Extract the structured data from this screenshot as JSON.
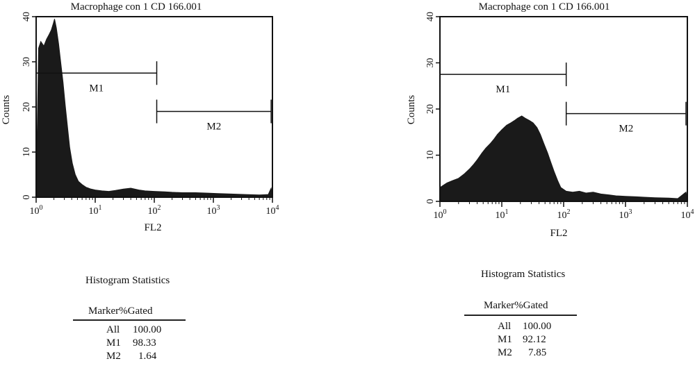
{
  "chart_data": [
    {
      "type": "histogram",
      "title": "Macrophage con 1 CD 166.001",
      "xlabel": "FL2",
      "ylabel": "Counts",
      "xscale": "log",
      "xlim": [
        1,
        10000
      ],
      "ylim": [
        0,
        40
      ],
      "x_ticks": [
        "10^0",
        "10^1",
        "10^2",
        "10^3",
        "10^4"
      ],
      "y_ticks": [
        0,
        10,
        20,
        30,
        40
      ],
      "fill_color": "#1a1a1a",
      "markers": [
        {
          "name": "M1",
          "from": 1,
          "to": 110,
          "level": 27.5
        },
        {
          "name": "M2",
          "from": 110,
          "to": 9500,
          "level": 19
        }
      ],
      "series": [
        {
          "values": [
            [
              1.0,
              0.5
            ],
            [
              1.1,
              33
            ],
            [
              1.2,
              34.5
            ],
            [
              1.35,
              33.5
            ],
            [
              1.5,
              35
            ],
            [
              1.65,
              36
            ],
            [
              1.8,
              37
            ],
            [
              1.95,
              38.5
            ],
            [
              2.05,
              39.5
            ],
            [
              2.2,
              37.5
            ],
            [
              2.4,
              34
            ],
            [
              2.6,
              30
            ],
            [
              2.85,
              25.5
            ],
            [
              3.1,
              20.5
            ],
            [
              3.4,
              15.5
            ],
            [
              3.7,
              11
            ],
            [
              4.1,
              7.5
            ],
            [
              4.6,
              5
            ],
            [
              5.2,
              3.5
            ],
            [
              6,
              2.8
            ],
            [
              7,
              2.2
            ],
            [
              8.5,
              1.8
            ],
            [
              10,
              1.6
            ],
            [
              13,
              1.4
            ],
            [
              17,
              1.3
            ],
            [
              22,
              1.5
            ],
            [
              30,
              1.8
            ],
            [
              40,
              2
            ],
            [
              55,
              1.6
            ],
            [
              70,
              1.4
            ],
            [
              100,
              1.3
            ],
            [
              150,
              1.2
            ],
            [
              200,
              1.1
            ],
            [
              300,
              1
            ],
            [
              500,
              1
            ],
            [
              800,
              0.9
            ],
            [
              1200,
              0.8
            ],
            [
              2000,
              0.7
            ],
            [
              3500,
              0.6
            ],
            [
              6000,
              0.5
            ],
            [
              8500,
              0.6
            ],
            [
              9500,
              2
            ],
            [
              10000,
              0.5
            ]
          ]
        }
      ],
      "stats": {
        "title": "Histogram Statistics",
        "headers": [
          "Marker",
          "%Gated"
        ],
        "rows": [
          {
            "marker": "All",
            "gated": "100.00"
          },
          {
            "marker": "M1",
            "gated": "98.33"
          },
          {
            "marker": "M2",
            "gated": "1.64"
          }
        ]
      }
    },
    {
      "type": "histogram",
      "title": "Macrophage con 1 CD 166.001",
      "xlabel": "FL2",
      "ylabel": "Counts",
      "xscale": "log",
      "xlim": [
        1,
        10000
      ],
      "ylim": [
        0,
        40
      ],
      "x_ticks": [
        "10^0",
        "10^1",
        "10^2",
        "10^3",
        "10^4"
      ],
      "y_ticks": [
        0,
        10,
        20,
        30,
        40
      ],
      "fill_color": "#1a1a1a",
      "markers": [
        {
          "name": "M1",
          "from": 1,
          "to": 110,
          "level": 27.5
        },
        {
          "name": "M2",
          "from": 110,
          "to": 9500,
          "level": 19
        }
      ],
      "series": [
        {
          "values": [
            [
              1.0,
              3
            ],
            [
              1.3,
              4
            ],
            [
              1.6,
              4.5
            ],
            [
              2,
              5
            ],
            [
              2.5,
              6
            ],
            [
              3,
              7
            ],
            [
              3.5,
              8
            ],
            [
              4,
              9
            ],
            [
              4.8,
              10.5
            ],
            [
              5.5,
              11.5
            ],
            [
              6.5,
              12.5
            ],
            [
              7.5,
              13.5
            ],
            [
              8.5,
              14.5
            ],
            [
              10,
              15.5
            ],
            [
              12,
              16.5
            ],
            [
              14,
              17
            ],
            [
              16,
              17.5
            ],
            [
              18,
              18
            ],
            [
              21,
              18.5
            ],
            [
              24,
              18
            ],
            [
              28,
              17.5
            ],
            [
              32,
              17
            ],
            [
              37,
              16
            ],
            [
              42,
              14.5
            ],
            [
              48,
              12.5
            ],
            [
              55,
              10.5
            ],
            [
              62,
              8.5
            ],
            [
              70,
              6.5
            ],
            [
              80,
              4.5
            ],
            [
              90,
              3
            ],
            [
              110,
              2.2
            ],
            [
              140,
              2
            ],
            [
              180,
              2.2
            ],
            [
              230,
              1.8
            ],
            [
              300,
              2
            ],
            [
              400,
              1.6
            ],
            [
              550,
              1.4
            ],
            [
              700,
              1.2
            ],
            [
              1000,
              1.1
            ],
            [
              1500,
              1
            ],
            [
              2000,
              0.9
            ],
            [
              3000,
              0.8
            ],
            [
              5000,
              0.7
            ],
            [
              7000,
              0.6
            ],
            [
              9500,
              2
            ],
            [
              10000,
              0.5
            ]
          ]
        }
      ],
      "stats": {
        "title": "Histogram Statistics",
        "headers": [
          "Marker",
          "%Gated"
        ],
        "rows": [
          {
            "marker": "All",
            "gated": "100.00"
          },
          {
            "marker": "M1",
            "gated": "92.12"
          },
          {
            "marker": "M2",
            "gated": "7.85"
          }
        ]
      }
    }
  ]
}
